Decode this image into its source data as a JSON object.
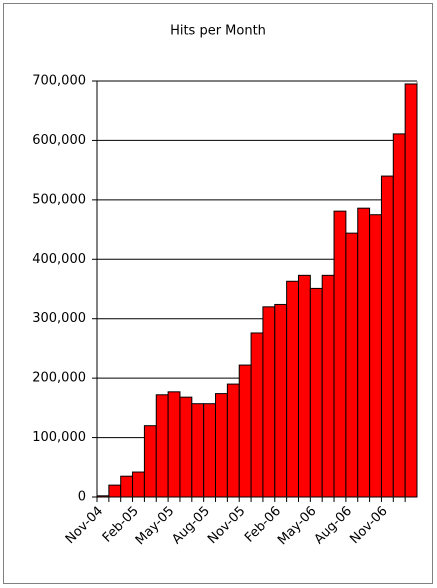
{
  "chart_data": {
    "type": "bar",
    "title": "Hits per Month",
    "categories": [
      "Nov-04",
      null,
      null,
      "Feb-05",
      null,
      null,
      "May-05",
      null,
      null,
      "Aug-05",
      null,
      null,
      "Nov-05",
      null,
      null,
      "Feb-06",
      null,
      null,
      "May-06",
      null,
      null,
      "Aug-06",
      null,
      null,
      "Nov-06",
      null,
      null
    ],
    "values": [
      2000,
      20000,
      35000,
      42000,
      120000,
      172000,
      177000,
      168000,
      157000,
      157000,
      174000,
      190000,
      222000,
      276000,
      320000,
      324000,
      363000,
      373000,
      351000,
      373000,
      481000,
      444000,
      486000,
      475000,
      540000,
      611000,
      695000
    ],
    "color": "#ff0000",
    "ylim": [
      0,
      700000
    ],
    "yticks": [
      0,
      {
        "value": 100000,
        "label": "100,000"
      },
      {
        "value": 200000,
        "label": "200,000"
      },
      {
        "value": 300000,
        "label": "300,000"
      },
      {
        "value": 400000,
        "label": "400,000"
      },
      {
        "value": 500000,
        "label": "500,000"
      },
      {
        "value": 600000,
        "label": "600,000"
      },
      {
        "value": 700000,
        "label": "700,000"
      }
    ],
    "grid": true
  }
}
